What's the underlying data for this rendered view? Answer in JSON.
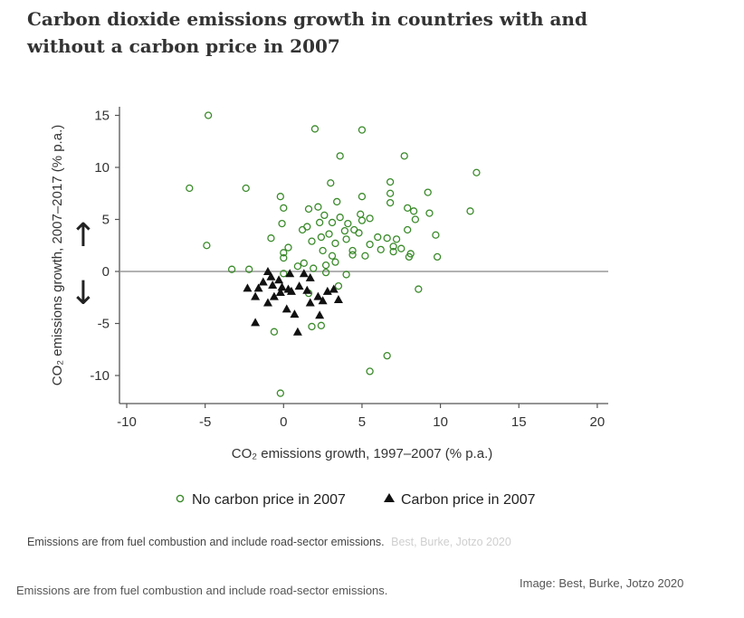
{
  "title": "Carbon dioxide emissions growth in countries with and without a carbon price in 2007",
  "chart_data": {
    "type": "scatter",
    "xlabel": "CO₂ emissions growth, 1997–2007 (% p.a.)",
    "ylabel": "CO₂ emissions growth, 2007–2017 (% p.a.)",
    "xlim": [
      -10,
      20
    ],
    "ylim": [
      -12.5,
      15.5
    ],
    "xticks": [
      "-10",
      "-5",
      "0",
      "5",
      "10",
      "15",
      "20"
    ],
    "yticks": [
      "15",
      "10",
      "5",
      "0",
      "-5",
      "-10"
    ],
    "xtick_values": [
      -10,
      -5,
      0,
      5,
      10,
      15,
      20
    ],
    "ytick_values": [
      15,
      10,
      5,
      0,
      -5,
      -10
    ],
    "zero_line": 0,
    "arrows": [
      "↑",
      "↓"
    ],
    "grid": false,
    "legend_position": "bottom",
    "series": [
      {
        "name": "No carbon price in 2007",
        "marker": "open-circle",
        "color": "#3a8a2a",
        "points": [
          [
            -4.8,
            15
          ],
          [
            2.0,
            13.7
          ],
          [
            5.0,
            13.6
          ],
          [
            3.6,
            11.1
          ],
          [
            7.7,
            11.1
          ],
          [
            12.3,
            9.5
          ],
          [
            -6.0,
            8.0
          ],
          [
            -2.4,
            8.0
          ],
          [
            3.0,
            8.5
          ],
          [
            6.8,
            8.6
          ],
          [
            6.8,
            7.5
          ],
          [
            9.2,
            7.6
          ],
          [
            -0.2,
            7.2
          ],
          [
            5.0,
            7.2
          ],
          [
            3.4,
            6.7
          ],
          [
            0.0,
            6.1
          ],
          [
            1.6,
            6.0
          ],
          [
            2.2,
            6.2
          ],
          [
            7.9,
            6.1
          ],
          [
            8.3,
            5.8
          ],
          [
            9.3,
            5.6
          ],
          [
            11.9,
            5.8
          ],
          [
            6.8,
            6.6
          ],
          [
            2.6,
            5.4
          ],
          [
            3.6,
            5.2
          ],
          [
            4.9,
            5.5
          ],
          [
            5.5,
            5.1
          ],
          [
            8.4,
            5.0
          ],
          [
            -0.1,
            4.6
          ],
          [
            2.3,
            4.7
          ],
          [
            3.1,
            4.7
          ],
          [
            4.1,
            4.6
          ],
          [
            5.0,
            4.9
          ],
          [
            1.5,
            4.3
          ],
          [
            4.5,
            4.0
          ],
          [
            3.9,
            3.9
          ],
          [
            2.9,
            3.6
          ],
          [
            4.8,
            3.7
          ],
          [
            7.9,
            4.0
          ],
          [
            -0.8,
            3.2
          ],
          [
            1.2,
            4.0
          ],
          [
            2.4,
            3.3
          ],
          [
            4.0,
            3.1
          ],
          [
            6.0,
            3.3
          ],
          [
            6.6,
            3.2
          ],
          [
            7.2,
            3.1
          ],
          [
            9.7,
            3.5
          ],
          [
            0.3,
            2.3
          ],
          [
            1.8,
            2.9
          ],
          [
            3.3,
            2.7
          ],
          [
            5.5,
            2.6
          ],
          [
            7.0,
            2.4
          ],
          [
            0.0,
            1.8
          ],
          [
            2.5,
            2.0
          ],
          [
            4.4,
            2.0
          ],
          [
            6.2,
            2.1
          ],
          [
            7.5,
            2.2
          ],
          [
            8.1,
            1.7
          ],
          [
            3.1,
            1.5
          ],
          [
            4.4,
            1.6
          ],
          [
            5.2,
            1.5
          ],
          [
            7.0,
            1.9
          ],
          [
            8.0,
            1.4
          ],
          [
            9.8,
            1.4
          ],
          [
            -4.9,
            2.5
          ],
          [
            -3.3,
            0.2
          ],
          [
            -2.2,
            0.2
          ],
          [
            0.0,
            1.3
          ],
          [
            1.3,
            0.8
          ],
          [
            2.7,
            0.6
          ],
          [
            3.3,
            0.9
          ],
          [
            0.9,
            0.5
          ],
          [
            1.9,
            0.3
          ],
          [
            2.7,
            -0.1
          ],
          [
            4.0,
            -0.3
          ],
          [
            0.0,
            -0.2
          ],
          [
            3.5,
            -1.4
          ],
          [
            1.6,
            -2.1
          ],
          [
            8.6,
            -1.7
          ],
          [
            -0.6,
            -5.8
          ],
          [
            2.4,
            -5.2
          ],
          [
            1.8,
            -5.3
          ],
          [
            5.5,
            -9.6
          ],
          [
            6.6,
            -8.1
          ],
          [
            -0.2,
            -11.7
          ]
        ]
      },
      {
        "name": "Carbon price in 2007",
        "marker": "filled-triangle",
        "color": "#111111",
        "points": [
          [
            -1.0,
            0.0
          ],
          [
            -0.8,
            -0.5
          ],
          [
            -0.3,
            -0.8
          ],
          [
            0.4,
            -0.2
          ],
          [
            1.3,
            -0.2
          ],
          [
            1.7,
            -0.6
          ],
          [
            -1.3,
            -1.0
          ],
          [
            -0.7,
            -1.3
          ],
          [
            -0.1,
            -1.5
          ],
          [
            -0.6,
            -2.4
          ],
          [
            -1.6,
            -1.6
          ],
          [
            -0.2,
            -2.0
          ],
          [
            0.3,
            -1.7
          ],
          [
            0.5,
            -1.9
          ],
          [
            -2.3,
            -1.6
          ],
          [
            -1.8,
            -2.4
          ],
          [
            1.0,
            -1.4
          ],
          [
            1.5,
            -1.8
          ],
          [
            1.7,
            -3.0
          ],
          [
            3.2,
            -1.7
          ],
          [
            -1.0,
            -3.0
          ],
          [
            0.2,
            -3.6
          ],
          [
            0.7,
            -4.1
          ],
          [
            2.2,
            -2.4
          ],
          [
            2.5,
            -2.8
          ],
          [
            2.8,
            -1.9
          ],
          [
            3.5,
            -2.7
          ],
          [
            -1.8,
            -4.9
          ],
          [
            2.3,
            -4.2
          ],
          [
            0.9,
            -5.8
          ]
        ]
      }
    ]
  },
  "inner_note": {
    "text": "Emissions are from fuel combustion and include road-sector emissions.",
    "source": "Best, Burke, Jotzo 2020"
  },
  "footer": {
    "note": "Emissions are from fuel combustion and include road-sector emissions.",
    "credit": "Image: Best, Burke, Jotzo 2020"
  }
}
